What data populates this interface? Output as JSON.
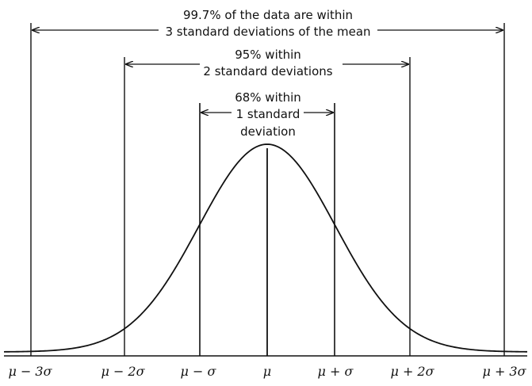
{
  "diagram": {
    "annotations": {
      "span_3sd": {
        "line1": "99.7% of the data are within",
        "line2": "3 standard deviations of the mean"
      },
      "span_2sd": {
        "line1": "95% within",
        "line2": "2 standard deviations"
      },
      "span_1sd": {
        "line1": "68% within",
        "line2": "1 standard",
        "line3": "deviation"
      }
    },
    "tick_labels": {
      "m3": "μ − 3σ",
      "m2": "μ − 2σ",
      "m1": "μ − σ",
      "mu": "μ",
      "p1": "μ + σ",
      "p2": "μ + 2σ",
      "p3": "μ + 3σ"
    },
    "line_color": "#111111",
    "background": "#ffffff"
  }
}
